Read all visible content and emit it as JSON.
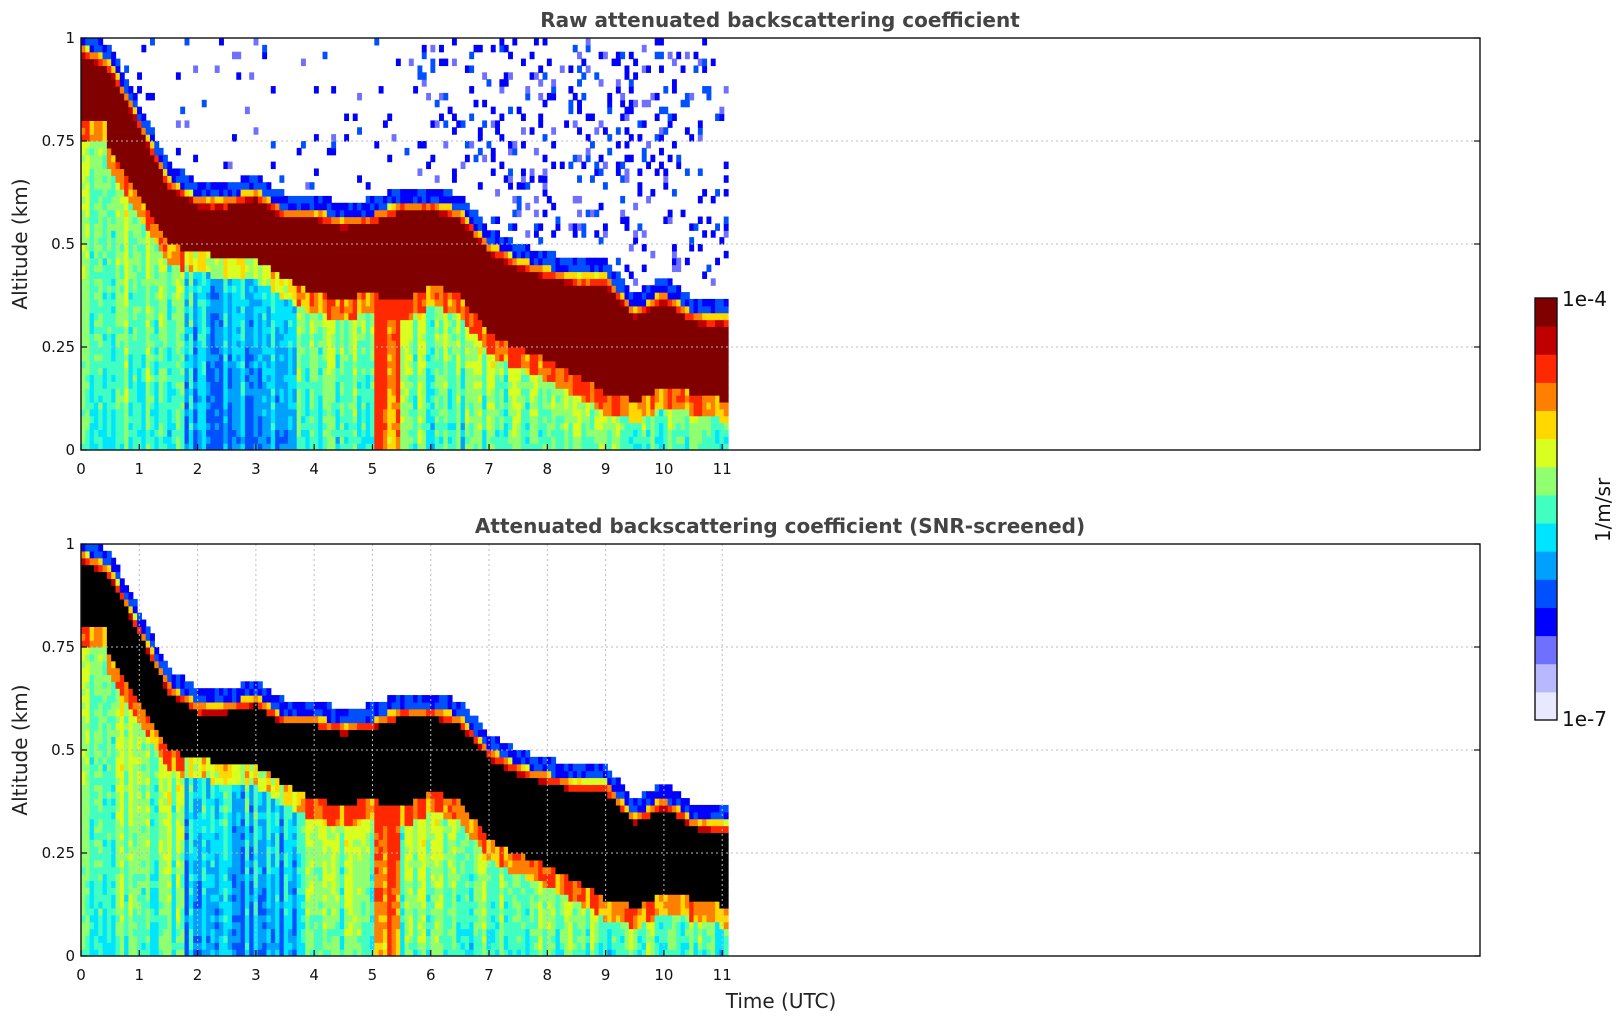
{
  "colors": {
    "colormap": [
      "#e8e8ff",
      "#b8b8ff",
      "#7070ff",
      "#0000ff",
      "#0050ff",
      "#00a0ff",
      "#00e5ff",
      "#40ffc0",
      "#90ff70",
      "#d8ff20",
      "#ffd800",
      "#ff8000",
      "#ff2800",
      "#c00000",
      "#800000"
    ],
    "screened": "#000000"
  },
  "chart_data": [
    {
      "type": "heatmap",
      "title": "Raw attenuated backscattering coefficient",
      "xlabel": "",
      "ylabel": "Altitude (km)",
      "xlim": [
        0,
        24
      ],
      "ylim": [
        0,
        1
      ],
      "x_ticks": [
        "0",
        "1",
        "2",
        "3",
        "4",
        "5",
        "6",
        "7",
        "8",
        "9",
        "10",
        "11"
      ],
      "y_ticks": [
        "0",
        "0.25",
        "0.5",
        "0.75",
        "1"
      ],
      "data_extent_x": [
        0,
        11.1
      ],
      "grid": "y-only",
      "layer_top_km": {
        "x": [
          0,
          0.5,
          1.0,
          1.5,
          2.0,
          2.5,
          3.0,
          3.5,
          4.0,
          4.5,
          5.0,
          5.5,
          6.0,
          6.5,
          7.0,
          7.5,
          8.0,
          8.5,
          9.0,
          9.5,
          10.0,
          10.5,
          11.1
        ],
        "y": [
          1.0,
          0.96,
          0.82,
          0.68,
          0.63,
          0.63,
          0.65,
          0.6,
          0.6,
          0.58,
          0.59,
          0.62,
          0.62,
          0.6,
          0.52,
          0.48,
          0.46,
          0.44,
          0.44,
          0.36,
          0.4,
          0.35,
          0.34
        ]
      },
      "cloud_base_km": {
        "x": [
          0.4,
          0.5,
          1.0,
          1.5,
          2.0,
          2.5,
          3.0,
          3.5,
          4.0,
          4.5,
          5.0,
          5.5,
          6.0,
          6.5,
          7.0,
          7.5,
          8.0,
          8.5,
          9.0,
          9.5,
          10.0,
          10.5,
          11.1
        ],
        "y": [
          0.8,
          0.72,
          0.62,
          0.5,
          0.48,
          0.47,
          0.46,
          0.42,
          0.38,
          0.37,
          0.38,
          0.36,
          0.4,
          0.38,
          0.28,
          0.25,
          0.22,
          0.18,
          0.14,
          0.12,
          0.15,
          0.14,
          0.12
        ]
      }
    },
    {
      "type": "heatmap",
      "title": "Attenuated backscattering coefficient (SNR-screened)",
      "xlabel": "Time (UTC)",
      "ylabel": "Altitude (km)",
      "xlim": [
        0,
        24
      ],
      "ylim": [
        0,
        1
      ],
      "x_ticks": [
        "0",
        "1",
        "2",
        "3",
        "4",
        "5",
        "6",
        "7",
        "8",
        "9",
        "10",
        "11"
      ],
      "y_ticks": [
        "0",
        "0.25",
        "0.5",
        "0.75",
        "1"
      ],
      "data_extent_x": [
        0,
        11.1
      ],
      "grid": "x-and-y"
    }
  ],
  "colorbar": {
    "label": "1/m/sr",
    "max_label": "1e-4",
    "min_label": "1e-7",
    "scale": "log"
  }
}
